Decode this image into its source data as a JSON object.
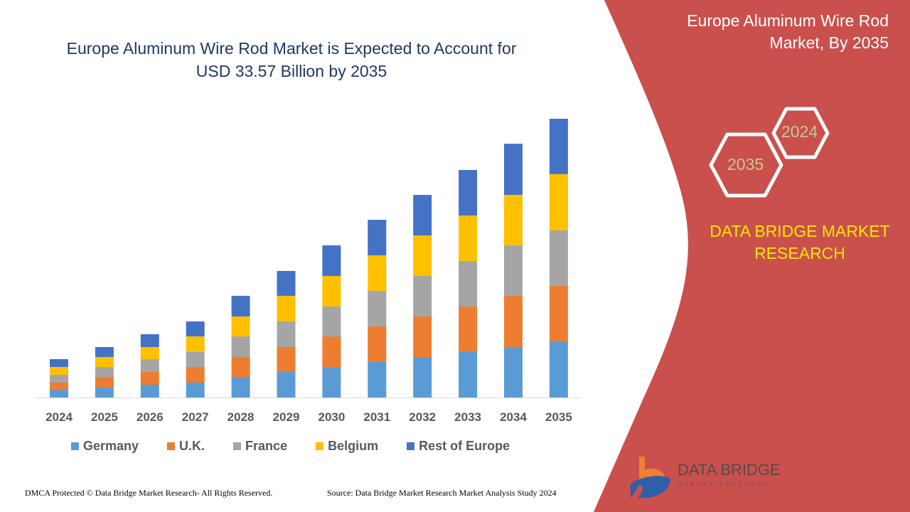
{
  "header": {
    "title_line1": "Europe Aluminum Wire Rod Market is Expected to Account for",
    "title_line2": "USD 33.57 Billion by 2035"
  },
  "side_panel": {
    "title_line1": "Europe Aluminum Wire Rod",
    "title_line2": "Market, By 2035",
    "hex_years": [
      "2024",
      "2035"
    ],
    "brand_line1": "DATA BRIDGE MARKET",
    "brand_line2": "RESEARCH",
    "logo_text": "DATA BRIDGE",
    "logo_subtext": "MARKET RESEARCH",
    "panel_color": "#C9504C",
    "brand_color": "#FFE600"
  },
  "footer": {
    "left": "DMCA Protected © Data Bridge Market Research- All Rights Reserved.",
    "right": "Source: Data Bridge Market Research Market Analysis Study 2024"
  },
  "chart_data": {
    "type": "bar",
    "stacked": true,
    "categories": [
      "2024",
      "2025",
      "2026",
      "2027",
      "2028",
      "2029",
      "2030",
      "2031",
      "2032",
      "2033",
      "2034",
      "2035"
    ],
    "series": [
      {
        "name": "Germany",
        "color": "#5B9BD5",
        "values": [
          0.94,
          1.2,
          1.54,
          1.8,
          2.48,
          3.08,
          3.68,
          4.28,
          4.88,
          5.48,
          6.08,
          6.68
        ]
      },
      {
        "name": "U.K.",
        "color": "#ED7D31",
        "values": [
          0.86,
          1.28,
          1.54,
          1.88,
          2.4,
          3.0,
          3.68,
          4.28,
          4.88,
          5.48,
          6.16,
          6.77
        ]
      },
      {
        "name": "France",
        "color": "#A5A5A5",
        "values": [
          0.94,
          1.2,
          1.54,
          1.8,
          2.48,
          3.08,
          3.6,
          4.28,
          4.88,
          5.48,
          6.08,
          6.68
        ]
      },
      {
        "name": "Belgium",
        "color": "#FFC000",
        "values": [
          0.94,
          1.2,
          1.46,
          1.88,
          2.4,
          3.08,
          3.68,
          4.28,
          4.88,
          5.48,
          6.08,
          6.77
        ]
      },
      {
        "name": "Rest of Europe",
        "color": "#4472C4",
        "values": [
          0.94,
          1.2,
          1.54,
          1.8,
          2.48,
          3.0,
          3.68,
          4.28,
          4.88,
          5.48,
          6.16,
          6.67
        ]
      }
    ],
    "ylim": [
      0,
      33.57
    ],
    "y_axis_visible": false,
    "grid": false,
    "legend_position": "bottom"
  }
}
